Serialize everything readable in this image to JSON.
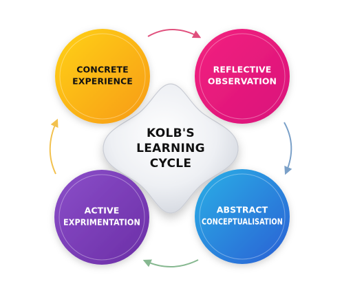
{
  "center": {
    "line1": "KOLB'S",
    "line2": "LEARNING",
    "line3": "CYCLE"
  },
  "stages": [
    {
      "line1": "CONCRETE",
      "line2": "EXPERIENCE",
      "color_start": "#ffd21a",
      "color_end": "#f79a11",
      "text_color": "#111111"
    },
    {
      "line1": "REFLECTIVE",
      "line2": "OBSERVATION",
      "color_start": "#f3237f",
      "color_end": "#d9117a",
      "text_color": "#ffffff"
    },
    {
      "line1": "ABSTRACT",
      "line2": "CONCEPTUALISATION",
      "color_start": "#2ab0e6",
      "color_end": "#2a5fd4",
      "text_color": "#ffffff"
    },
    {
      "line1": "ACTIVE",
      "line2": "EXPRIMENTATION",
      "color_start": "#8b4ec9",
      "color_end": "#6b2ea6",
      "text_color": "#ffffff"
    }
  ],
  "arrows": {
    "top": "#e0507d",
    "right": "#7aa0c8",
    "bottom": "#86b890",
    "left": "#f2c14e"
  }
}
